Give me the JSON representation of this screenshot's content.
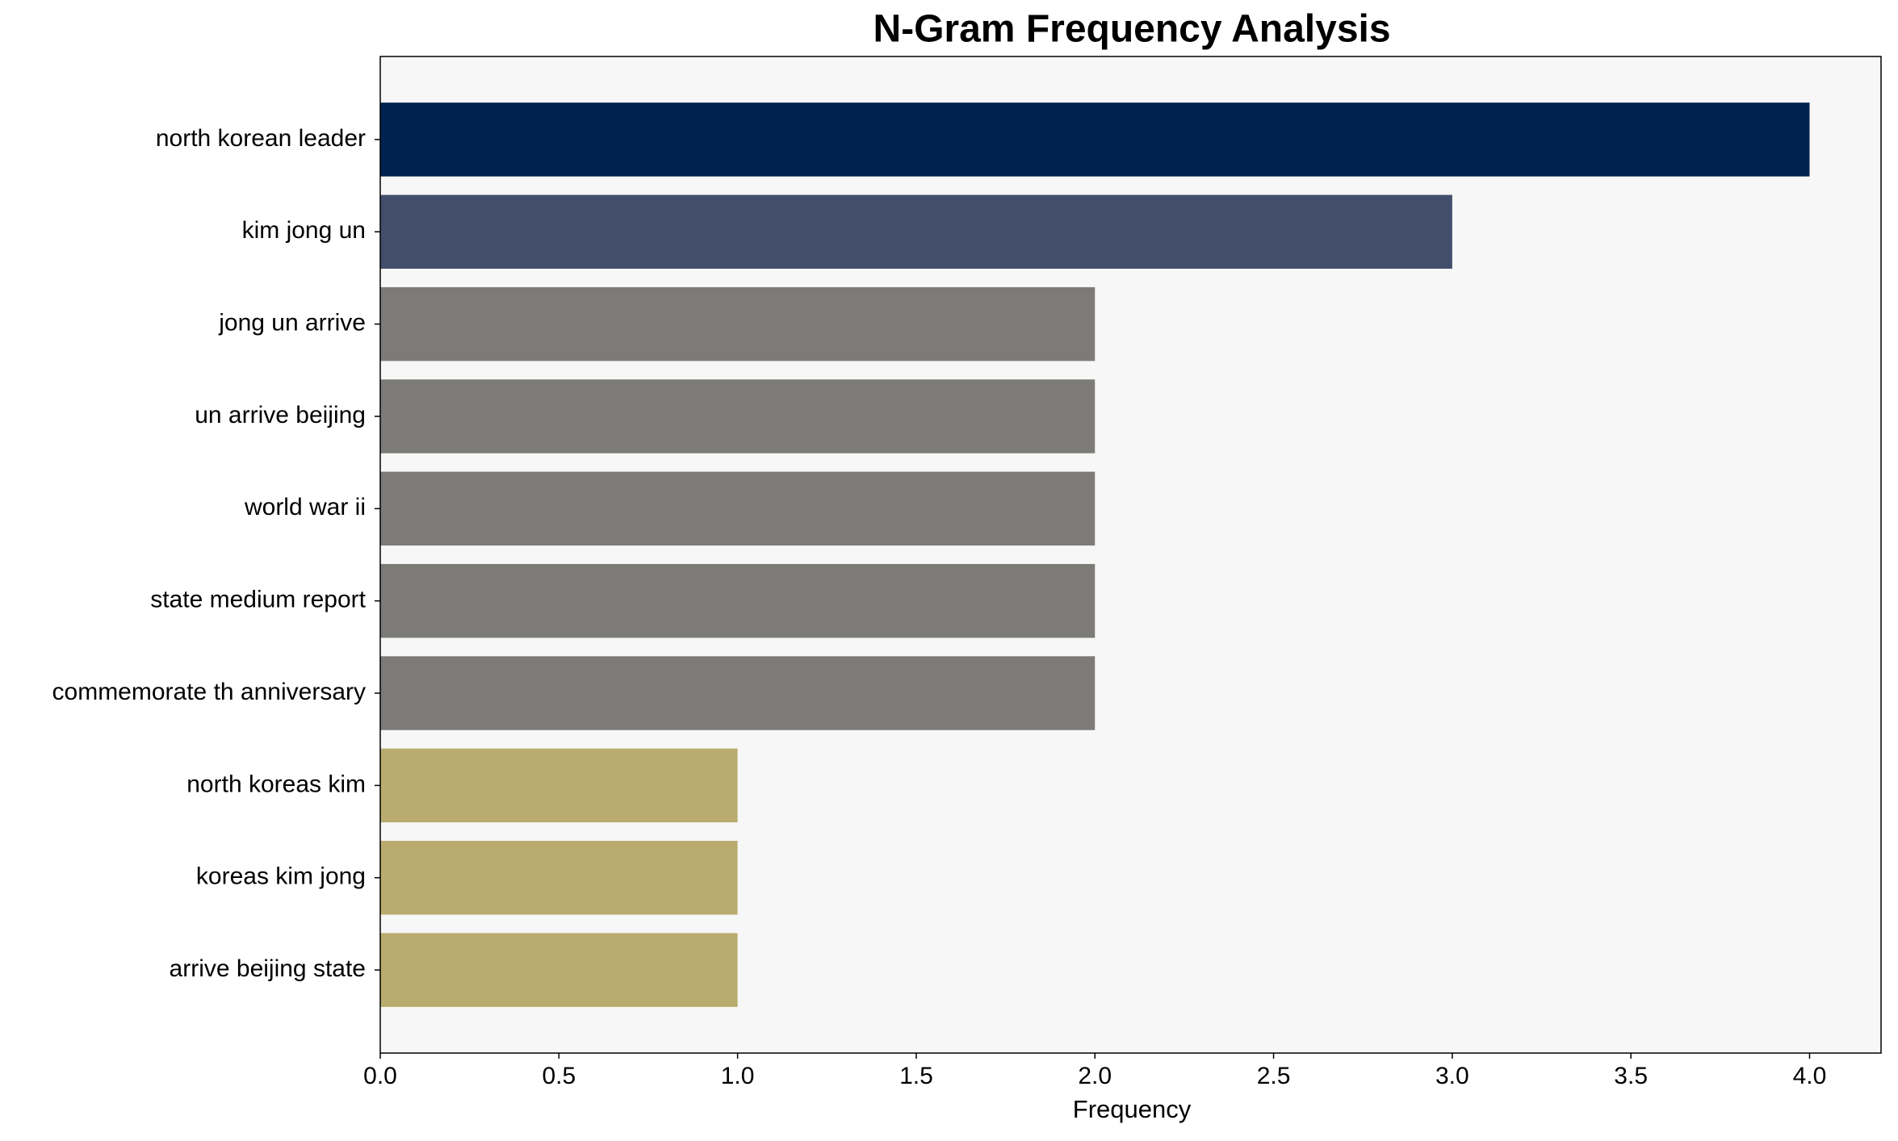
{
  "chart_data": {
    "type": "barh",
    "title": "N-Gram Frequency Analysis",
    "x_label": "Frequency",
    "categories": [
      "north korean leader",
      "kim jong un",
      "jong un arrive",
      "un arrive beijing",
      "world war ii",
      "state medium report",
      "commemorate th anniversary",
      "north koreas kim",
      "koreas kim jong",
      "arrive beijing state"
    ],
    "values": [
      4,
      3,
      2,
      2,
      2,
      2,
      2,
      1,
      1,
      1
    ],
    "colors": [
      "#00224e",
      "#434e6c",
      "#7c7b78",
      "#7c7b78",
      "#7c7b78",
      "#7c7b78",
      "#7c7b78",
      "#b9ac6e",
      "#b9ac6e",
      "#b9ac6e"
    ],
    "xlim": [
      0,
      4.2
    ],
    "xticks": [
      {
        "value": 0,
        "label": "0.0"
      },
      {
        "value": 0.5,
        "label": "0.5"
      },
      {
        "value": 1,
        "label": "1.0"
      },
      {
        "value": 1.5,
        "label": "1.5"
      },
      {
        "value": 2,
        "label": "2.0"
      },
      {
        "value": 2.5,
        "label": "2.5"
      },
      {
        "value": 3,
        "label": "3.0"
      },
      {
        "value": 3.5,
        "label": "3.5"
      },
      {
        "value": 4,
        "label": "4.0"
      }
    ],
    "grid": false
  }
}
